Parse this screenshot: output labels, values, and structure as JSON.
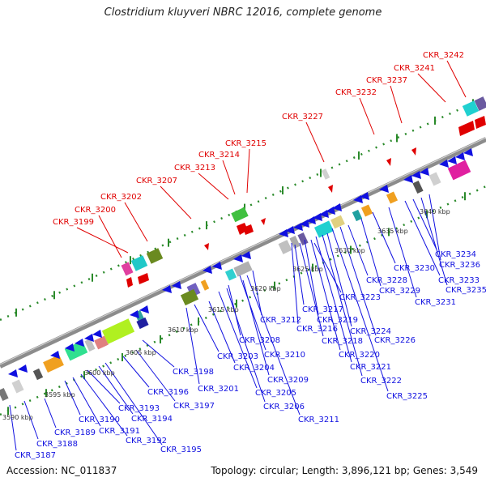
{
  "header": {
    "title": "Clostridium kluyveri NBRC 12016, complete genome"
  },
  "footer": {
    "accession": "Accession: NC_011837",
    "summary": "Topology: circular; Length: 3,896,121 bp; Genes: 3,549"
  },
  "ruler": {
    "unit": "kbp",
    "ticks": [
      {
        "label": "3590 kbp",
        "value": 3590
      },
      {
        "label": "3595 kbp",
        "value": 3595
      },
      {
        "label": "3600 kbp",
        "value": 3600
      },
      {
        "label": "3605 kbp",
        "value": 3605
      },
      {
        "label": "3610 kbp",
        "value": 3610
      },
      {
        "label": "3615 kbp",
        "value": 3615
      },
      {
        "label": "3620 kbp",
        "value": 3620
      },
      {
        "label": "3625 kbp",
        "value": 3625
      },
      {
        "label": "3630 kbp",
        "value": 3630
      },
      {
        "label": "3635 kbp",
        "value": 3635
      },
      {
        "label": "3640 kbp",
        "value": 3640
      }
    ]
  },
  "colors": {
    "forward_strand": "#e00000",
    "reverse_strand": "#1010e0",
    "backbone": "#9a9a9a",
    "dots": "#2a8a2a"
  },
  "forward_genes": [
    "CKR_3199",
    "CKR_3200",
    "CKR_3202",
    "CKR_3207",
    "CKR_3213",
    "CKR_3214",
    "CKR_3215",
    "CKR_3227",
    "CKR_3232",
    "CKR_3237",
    "CKR_3241",
    "CKR_3242"
  ],
  "reverse_genes": [
    "CKR_3187",
    "CKR_3188",
    "CKR_3189",
    "CKR_3190",
    "CKR_3191",
    "CKR_3192",
    "CKR_3193",
    "CKR_3194",
    "CKR_3195",
    "CKR_3196",
    "CKR_3197",
    "CKR_3198",
    "CKR_3201",
    "CKR_3203",
    "CKR_3204",
    "CKR_3205",
    "CKR_3206",
    "CKR_3208",
    "CKR_3209",
    "CKR_3210",
    "CKR_3211",
    "CKR_3212",
    "CKR_3216",
    "CKR_3217",
    "CKR_3218",
    "CKR_3219",
    "CKR_3220",
    "CKR_3221",
    "CKR_3222",
    "CKR_3223",
    "CKR_3224",
    "CKR_3225",
    "CKR_3226",
    "CKR_3228",
    "CKR_3229",
    "CKR_3230",
    "CKR_3231",
    "CKR_3233",
    "CKR_3234",
    "CKR_3235",
    "CKR_3236"
  ]
}
